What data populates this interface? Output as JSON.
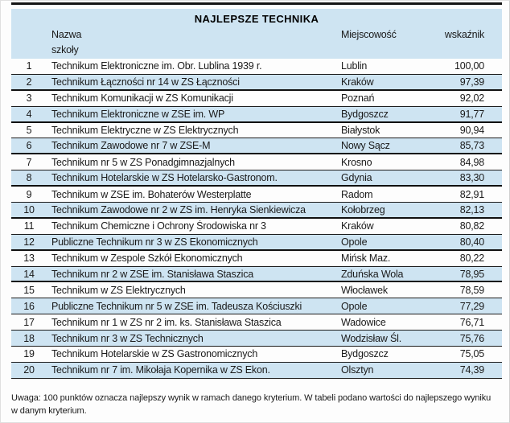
{
  "page": {
    "note": "Uwaga: 100 punktów oznacza najlepszy wynik w ramach danego kryterium. W tabeli podano wartości do najlepszego wyniku w danym kryterium."
  },
  "colors": {
    "band_blue": "#cee4f2",
    "rule_black": "#141414"
  },
  "table": {
    "title": "NAJLEPSZE TECHNIKA",
    "columns": {
      "name_line1": "Nazwa",
      "name_line2": "szkoły",
      "city": "Miejscowość",
      "score": "wskaźnik"
    },
    "rows": [
      {
        "rank": "1",
        "name": "Technikum Elektroniczne im. Obr. Lublina 1939 r.",
        "city": "Lublin",
        "score": "100,00"
      },
      {
        "rank": "2",
        "name": "Technikum Łączności nr 14 w ZS Łączności",
        "city": "Kraków",
        "score": "97,39"
      },
      {
        "rank": "3",
        "name": "Technikum Komunikacji w ZS Komunikacji",
        "city": "Poznań",
        "score": "92,02"
      },
      {
        "rank": "4",
        "name": "Technikum Elektroniczne w ZSE im. WP",
        "city": "Bydgoszcz",
        "score": "91,77"
      },
      {
        "rank": "5",
        "name": "Technikum Elektryczne w ZS Elektrycznych",
        "city": "Białystok",
        "score": "90,94"
      },
      {
        "rank": "6",
        "name": "Technikum Zawodowe nr 7 w ZSE-M",
        "city": "Nowy Sącz",
        "score": "85,73"
      },
      {
        "rank": "7",
        "name": "Technikum nr 5 w ZS Ponadgimnazjalnych",
        "city": "Krosno",
        "score": "84,98"
      },
      {
        "rank": "8",
        "name": "Technikum Hotelarskie w ZS Hotelarsko-Gastronom.",
        "city": "Gdynia",
        "score": "83,30"
      },
      {
        "rank": "9",
        "name": "Technikum w ZSE im. Bohaterów Westerplatte",
        "city": "Radom",
        "score": "82,91"
      },
      {
        "rank": "10",
        "name": "Technikum Zawodowe nr 2 w ZS im. Henryka Sienkiewicza",
        "city": "Kołobrzeg",
        "score": "82,13"
      },
      {
        "rank": "11",
        "name": "Technikum Chemiczne i Ochrony Środowiska nr 3",
        "city": "Kraków",
        "score": "80,82"
      },
      {
        "rank": "12",
        "name": "Publiczne Technikum nr 3 w ZS Ekonomicznych",
        "city": "Opole",
        "score": "80,40"
      },
      {
        "rank": "13",
        "name": "Technikum w Zespole Szkół Ekonomicznych",
        "city": "Mińsk Maz.",
        "score": "80,22"
      },
      {
        "rank": "14",
        "name": "Technikum nr 2 w ZSE im. Stanisława Staszica",
        "city": "Zduńska Wola",
        "score": "78,95"
      },
      {
        "rank": "15",
        "name": "Technikum w ZS Elektrycznych",
        "city": "Włocławek",
        "score": "78,59"
      },
      {
        "rank": "16",
        "name": "Publiczne Technikum nr 5 w ZSE im. Tadeusza Kościuszki",
        "city": "Opole",
        "score": "77,29"
      },
      {
        "rank": "17",
        "name": "Technikum nr 1 w ZS nr 2 im. ks. Stanisława Staszica",
        "city": "Wadowice",
        "score": "76,71"
      },
      {
        "rank": "18",
        "name": "Technikum nr 3 w ZS Technicznych",
        "city": "Wodzisław Śl.",
        "score": "75,76"
      },
      {
        "rank": "19",
        "name": "Technikum Hotelarskie w ZS Gastronomicznych",
        "city": "Bydgoszcz",
        "score": "75,05"
      },
      {
        "rank": "20",
        "name": "Technikum nr 7 im. Mikołaja Kopernika w ZS Ekon.",
        "city": "Olsztyn",
        "score": "74,39"
      }
    ]
  },
  "chart_data": {
    "type": "table",
    "title": "NAJLEPSZE TECHNIKA",
    "columns": [
      "rank",
      "Nazwa szkoły",
      "Miejscowość",
      "wskaźnik"
    ],
    "categories": [
      "Lublin",
      "Kraków",
      "Poznań",
      "Bydgoszcz",
      "Białystok",
      "Nowy Sącz",
      "Krosno",
      "Gdynia",
      "Radom",
      "Kołobrzeg",
      "Kraków",
      "Opole",
      "Mińsk Maz.",
      "Zduńska Wola",
      "Włocławek",
      "Opole",
      "Wadowice",
      "Wodzisław Śl.",
      "Bydgoszcz",
      "Olsztyn"
    ],
    "values": [
      100.0,
      97.39,
      92.02,
      91.77,
      90.94,
      85.73,
      84.98,
      83.3,
      82.91,
      82.13,
      80.82,
      80.4,
      80.22,
      78.95,
      78.59,
      77.29,
      76.71,
      75.76,
      75.05,
      74.39
    ]
  }
}
